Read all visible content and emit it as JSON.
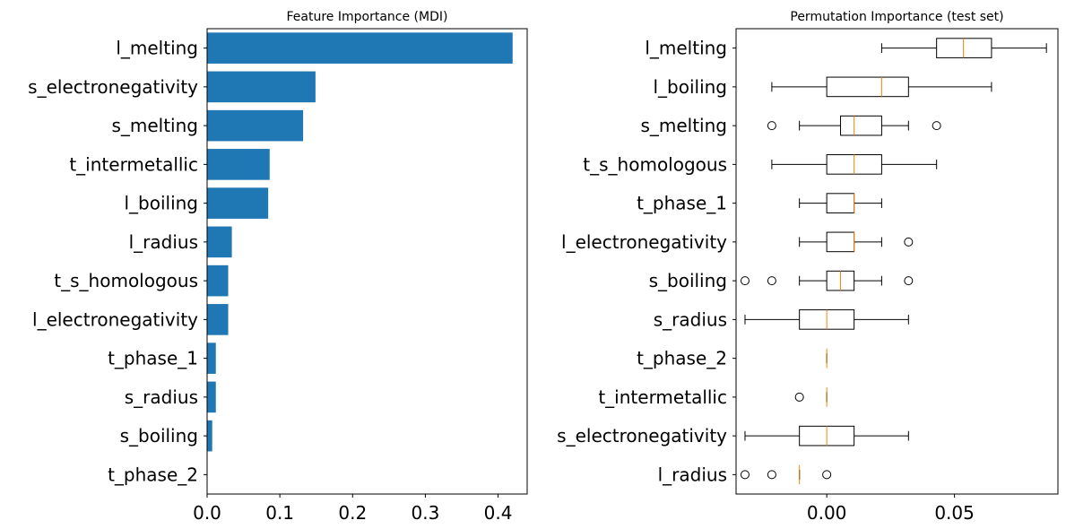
{
  "chart_data": [
    {
      "type": "bar",
      "orientation": "horizontal",
      "title": "Feature Importance (MDI)",
      "categories": [
        "l_melting",
        "s_electronegativity",
        "s_melting",
        "t_intermetallic",
        "l_boiling",
        "l_radius",
        "t_s_homologous",
        "l_electronegativity",
        "t_phase_1",
        "s_radius",
        "s_boiling",
        "t_phase_2"
      ],
      "values": [
        0.42,
        0.149,
        0.132,
        0.086,
        0.084,
        0.034,
        0.029,
        0.029,
        0.012,
        0.012,
        0.007,
        0.0
      ],
      "xlim": [
        0,
        0.44
      ],
      "xticks": [
        "0.0",
        "0.1",
        "0.2",
        "0.3",
        "0.4"
      ],
      "xtick_values": [
        0.0,
        0.1,
        0.2,
        0.3,
        0.4
      ],
      "bar_color": "#1f77b4",
      "xlabel": "",
      "ylabel": ""
    },
    {
      "type": "box",
      "orientation": "horizontal",
      "title": "Permutation Importance (test set)",
      "categories": [
        "l_melting",
        "l_boiling",
        "s_melting",
        "t_s_homologous",
        "t_phase_1",
        "l_electronegativity",
        "s_boiling",
        "s_radius",
        "t_phase_2",
        "t_intermetallic",
        "s_electronegativity",
        "l_radius"
      ],
      "boxes": [
        {
          "whisker_low": 0.0215,
          "q1": 0.043,
          "median": 0.0535,
          "q3": 0.0645,
          "whisker_high": 0.086,
          "outliers": []
        },
        {
          "whisker_low": -0.0215,
          "q1": 0.0,
          "median": 0.0215,
          "q3": 0.032,
          "whisker_high": 0.0645,
          "outliers": []
        },
        {
          "whisker_low": -0.0107,
          "q1": 0.0054,
          "median": 0.0107,
          "q3": 0.0215,
          "whisker_high": 0.032,
          "outliers": [
            -0.0215,
            0.043
          ]
        },
        {
          "whisker_low": -0.0215,
          "q1": 0.0,
          "median": 0.0107,
          "q3": 0.0215,
          "whisker_high": 0.043,
          "outliers": []
        },
        {
          "whisker_low": -0.0107,
          "q1": 0.0,
          "median": 0.0107,
          "q3": 0.0107,
          "whisker_high": 0.0215,
          "outliers": []
        },
        {
          "whisker_low": -0.0107,
          "q1": 0.0,
          "median": 0.0107,
          "q3": 0.0107,
          "whisker_high": 0.0215,
          "outliers": [
            0.032
          ]
        },
        {
          "whisker_low": -0.0107,
          "q1": 0.0,
          "median": 0.0054,
          "q3": 0.0107,
          "whisker_high": 0.0215,
          "outliers": [
            -0.032,
            -0.0215,
            0.032
          ]
        },
        {
          "whisker_low": -0.032,
          "q1": -0.0107,
          "median": 0.0,
          "q3": 0.0107,
          "whisker_high": 0.032,
          "outliers": []
        },
        {
          "whisker_low": 0.0,
          "q1": 0.0,
          "median": 0.0,
          "q3": 0.0,
          "whisker_high": 0.0,
          "outliers": []
        },
        {
          "whisker_low": 0.0,
          "q1": 0.0,
          "median": 0.0,
          "q3": 0.0,
          "whisker_high": 0.0,
          "outliers": [
            -0.0107
          ]
        },
        {
          "whisker_low": -0.032,
          "q1": -0.0107,
          "median": 0.0,
          "q3": 0.0107,
          "whisker_high": 0.032,
          "outliers": []
        },
        {
          "whisker_low": -0.0107,
          "q1": -0.0107,
          "median": -0.0107,
          "q3": -0.0107,
          "whisker_high": -0.0107,
          "outliers": [
            -0.032,
            -0.0215,
            0.0
          ]
        }
      ],
      "xlim": [
        -0.0355,
        0.0905
      ],
      "xticks": [
        "0.00",
        "0.05"
      ],
      "xtick_values": [
        0.0,
        0.05
      ],
      "box_color": "#000000",
      "median_color": "#ff7f0e",
      "xlabel": "",
      "ylabel": ""
    }
  ]
}
